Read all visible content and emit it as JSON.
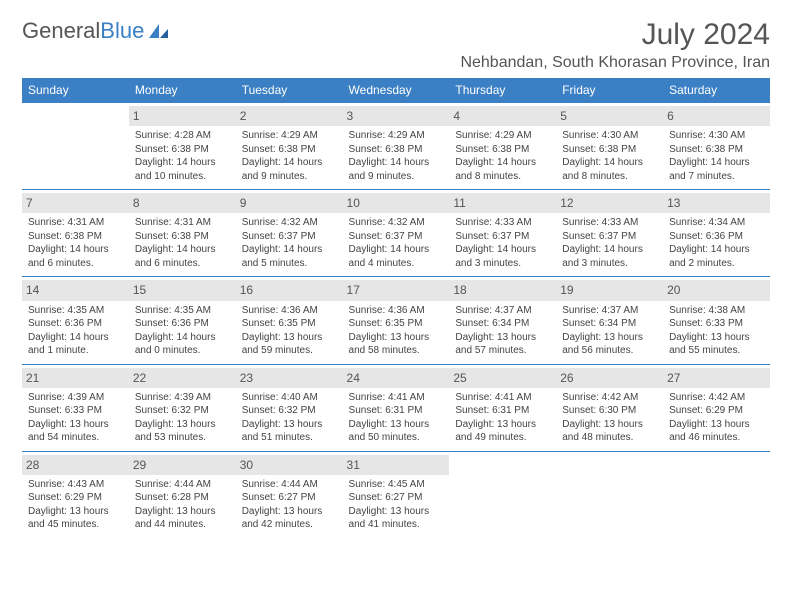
{
  "logo": {
    "text1": "General",
    "text2": "Blue"
  },
  "title": "July 2024",
  "location": "Nehbandan, South Khorasan Province, Iran",
  "colors": {
    "header_bg": "#3b7fc4",
    "header_text": "#ffffff",
    "daynum_bg": "#e6e6e6",
    "row_border": "#3b7fc4",
    "body_text": "#444444",
    "title_text": "#555555"
  },
  "day_headers": [
    "Sunday",
    "Monday",
    "Tuesday",
    "Wednesday",
    "Thursday",
    "Friday",
    "Saturday"
  ],
  "weeks": [
    [
      {
        "n": "",
        "sr": "",
        "ss": "",
        "dl": ""
      },
      {
        "n": "1",
        "sr": "Sunrise: 4:28 AM",
        "ss": "Sunset: 6:38 PM",
        "dl": "Daylight: 14 hours and 10 minutes."
      },
      {
        "n": "2",
        "sr": "Sunrise: 4:29 AM",
        "ss": "Sunset: 6:38 PM",
        "dl": "Daylight: 14 hours and 9 minutes."
      },
      {
        "n": "3",
        "sr": "Sunrise: 4:29 AM",
        "ss": "Sunset: 6:38 PM",
        "dl": "Daylight: 14 hours and 9 minutes."
      },
      {
        "n": "4",
        "sr": "Sunrise: 4:29 AM",
        "ss": "Sunset: 6:38 PM",
        "dl": "Daylight: 14 hours and 8 minutes."
      },
      {
        "n": "5",
        "sr": "Sunrise: 4:30 AM",
        "ss": "Sunset: 6:38 PM",
        "dl": "Daylight: 14 hours and 8 minutes."
      },
      {
        "n": "6",
        "sr": "Sunrise: 4:30 AM",
        "ss": "Sunset: 6:38 PM",
        "dl": "Daylight: 14 hours and 7 minutes."
      }
    ],
    [
      {
        "n": "7",
        "sr": "Sunrise: 4:31 AM",
        "ss": "Sunset: 6:38 PM",
        "dl": "Daylight: 14 hours and 6 minutes."
      },
      {
        "n": "8",
        "sr": "Sunrise: 4:31 AM",
        "ss": "Sunset: 6:38 PM",
        "dl": "Daylight: 14 hours and 6 minutes."
      },
      {
        "n": "9",
        "sr": "Sunrise: 4:32 AM",
        "ss": "Sunset: 6:37 PM",
        "dl": "Daylight: 14 hours and 5 minutes."
      },
      {
        "n": "10",
        "sr": "Sunrise: 4:32 AM",
        "ss": "Sunset: 6:37 PM",
        "dl": "Daylight: 14 hours and 4 minutes."
      },
      {
        "n": "11",
        "sr": "Sunrise: 4:33 AM",
        "ss": "Sunset: 6:37 PM",
        "dl": "Daylight: 14 hours and 3 minutes."
      },
      {
        "n": "12",
        "sr": "Sunrise: 4:33 AM",
        "ss": "Sunset: 6:37 PM",
        "dl": "Daylight: 14 hours and 3 minutes."
      },
      {
        "n": "13",
        "sr": "Sunrise: 4:34 AM",
        "ss": "Sunset: 6:36 PM",
        "dl": "Daylight: 14 hours and 2 minutes."
      }
    ],
    [
      {
        "n": "14",
        "sr": "Sunrise: 4:35 AM",
        "ss": "Sunset: 6:36 PM",
        "dl": "Daylight: 14 hours and 1 minute."
      },
      {
        "n": "15",
        "sr": "Sunrise: 4:35 AM",
        "ss": "Sunset: 6:36 PM",
        "dl": "Daylight: 14 hours and 0 minutes."
      },
      {
        "n": "16",
        "sr": "Sunrise: 4:36 AM",
        "ss": "Sunset: 6:35 PM",
        "dl": "Daylight: 13 hours and 59 minutes."
      },
      {
        "n": "17",
        "sr": "Sunrise: 4:36 AM",
        "ss": "Sunset: 6:35 PM",
        "dl": "Daylight: 13 hours and 58 minutes."
      },
      {
        "n": "18",
        "sr": "Sunrise: 4:37 AM",
        "ss": "Sunset: 6:34 PM",
        "dl": "Daylight: 13 hours and 57 minutes."
      },
      {
        "n": "19",
        "sr": "Sunrise: 4:37 AM",
        "ss": "Sunset: 6:34 PM",
        "dl": "Daylight: 13 hours and 56 minutes."
      },
      {
        "n": "20",
        "sr": "Sunrise: 4:38 AM",
        "ss": "Sunset: 6:33 PM",
        "dl": "Daylight: 13 hours and 55 minutes."
      }
    ],
    [
      {
        "n": "21",
        "sr": "Sunrise: 4:39 AM",
        "ss": "Sunset: 6:33 PM",
        "dl": "Daylight: 13 hours and 54 minutes."
      },
      {
        "n": "22",
        "sr": "Sunrise: 4:39 AM",
        "ss": "Sunset: 6:32 PM",
        "dl": "Daylight: 13 hours and 53 minutes."
      },
      {
        "n": "23",
        "sr": "Sunrise: 4:40 AM",
        "ss": "Sunset: 6:32 PM",
        "dl": "Daylight: 13 hours and 51 minutes."
      },
      {
        "n": "24",
        "sr": "Sunrise: 4:41 AM",
        "ss": "Sunset: 6:31 PM",
        "dl": "Daylight: 13 hours and 50 minutes."
      },
      {
        "n": "25",
        "sr": "Sunrise: 4:41 AM",
        "ss": "Sunset: 6:31 PM",
        "dl": "Daylight: 13 hours and 49 minutes."
      },
      {
        "n": "26",
        "sr": "Sunrise: 4:42 AM",
        "ss": "Sunset: 6:30 PM",
        "dl": "Daylight: 13 hours and 48 minutes."
      },
      {
        "n": "27",
        "sr": "Sunrise: 4:42 AM",
        "ss": "Sunset: 6:29 PM",
        "dl": "Daylight: 13 hours and 46 minutes."
      }
    ],
    [
      {
        "n": "28",
        "sr": "Sunrise: 4:43 AM",
        "ss": "Sunset: 6:29 PM",
        "dl": "Daylight: 13 hours and 45 minutes."
      },
      {
        "n": "29",
        "sr": "Sunrise: 4:44 AM",
        "ss": "Sunset: 6:28 PM",
        "dl": "Daylight: 13 hours and 44 minutes."
      },
      {
        "n": "30",
        "sr": "Sunrise: 4:44 AM",
        "ss": "Sunset: 6:27 PM",
        "dl": "Daylight: 13 hours and 42 minutes."
      },
      {
        "n": "31",
        "sr": "Sunrise: 4:45 AM",
        "ss": "Sunset: 6:27 PM",
        "dl": "Daylight: 13 hours and 41 minutes."
      },
      {
        "n": "",
        "sr": "",
        "ss": "",
        "dl": ""
      },
      {
        "n": "",
        "sr": "",
        "ss": "",
        "dl": ""
      },
      {
        "n": "",
        "sr": "",
        "ss": "",
        "dl": ""
      }
    ]
  ]
}
